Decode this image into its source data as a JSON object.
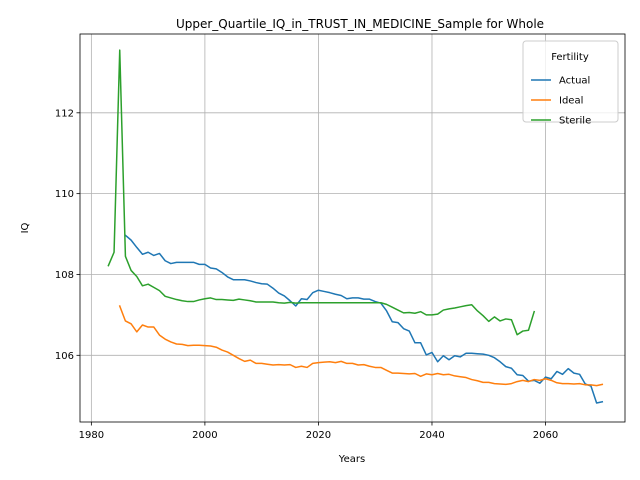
{
  "chart_data": {
    "type": "line",
    "title": "Upper_Quartile_IQ_in_TRUST_IN_MEDICINE_Sample for Whole",
    "xlabel": "Years",
    "ylabel": "IQ",
    "xlim": [
      1978,
      2074
    ],
    "ylim": [
      104.35,
      113.95
    ],
    "xticks": [
      1980,
      2000,
      2020,
      2040,
      2060
    ],
    "yticks": [
      106,
      108,
      110,
      112
    ],
    "grid": true,
    "legend": {
      "title": "Fertility",
      "placement": "top-right"
    },
    "colors": {
      "Actual": "#1f77b4",
      "Ideal": "#ff7f0e",
      "Sterile": "#2ca02c"
    },
    "series": [
      {
        "name": "Actual",
        "x": [
          1986,
          1987,
          1988,
          1989,
          1990,
          1991,
          1992,
          1993,
          1994,
          1995,
          1996,
          1997,
          1998,
          1999,
          2000,
          2001,
          2002,
          2003,
          2004,
          2005,
          2006,
          2007,
          2008,
          2009,
          2010,
          2011,
          2012,
          2013,
          2014,
          2015,
          2016,
          2017,
          2018,
          2019,
          2020,
          2021,
          2022,
          2023,
          2024,
          2025,
          2026,
          2027,
          2028,
          2029,
          2030,
          2031,
          2032,
          2033,
          2034,
          2035,
          2036,
          2037,
          2038,
          2039,
          2040,
          2041,
          2042,
          2043,
          2044,
          2045,
          2046,
          2047,
          2048,
          2049,
          2050,
          2051,
          2052,
          2053,
          2054,
          2055,
          2056,
          2057,
          2058,
          2059,
          2060,
          2061,
          2062,
          2063,
          2064,
          2065,
          2066,
          2067,
          2068,
          2069,
          2070
        ],
        "values": [
          108.97,
          108.85,
          108.67,
          108.5,
          108.55,
          108.47,
          108.52,
          108.34,
          108.27,
          108.3,
          108.3,
          108.3,
          108.3,
          108.25,
          108.25,
          108.16,
          108.14,
          108.05,
          107.94,
          107.87,
          107.87,
          107.87,
          107.84,
          107.8,
          107.77,
          107.76,
          107.66,
          107.54,
          107.47,
          107.35,
          107.22,
          107.4,
          107.38,
          107.55,
          107.61,
          107.58,
          107.55,
          107.51,
          107.48,
          107.4,
          107.42,
          107.42,
          107.39,
          107.39,
          107.33,
          107.29,
          107.1,
          106.83,
          106.81,
          106.66,
          106.6,
          106.31,
          106.31,
          106.01,
          106.07,
          105.84,
          105.99,
          105.89,
          105.99,
          105.96,
          106.05,
          106.05,
          106.04,
          106.03,
          106.0,
          105.94,
          105.84,
          105.72,
          105.68,
          105.52,
          105.5,
          105.36,
          105.38,
          105.31,
          105.46,
          105.42,
          105.6,
          105.53,
          105.67,
          105.56,
          105.53,
          105.29,
          105.24,
          104.82,
          104.85
        ]
      },
      {
        "name": "Ideal",
        "x": [
          1985,
          1986,
          1987,
          1988,
          1989,
          1990,
          1991,
          1992,
          1993,
          1994,
          1995,
          1996,
          1997,
          1998,
          1999,
          2000,
          2001,
          2002,
          2003,
          2004,
          2005,
          2006,
          2007,
          2008,
          2009,
          2010,
          2011,
          2012,
          2013,
          2014,
          2015,
          2016,
          2017,
          2018,
          2019,
          2020,
          2021,
          2022,
          2023,
          2024,
          2025,
          2026,
          2027,
          2028,
          2029,
          2030,
          2031,
          2032,
          2033,
          2034,
          2035,
          2036,
          2037,
          2038,
          2039,
          2040,
          2041,
          2042,
          2043,
          2044,
          2045,
          2046,
          2047,
          2048,
          2049,
          2050,
          2051,
          2052,
          2053,
          2054,
          2055,
          2056,
          2057,
          2058,
          2059,
          2060,
          2061,
          2062,
          2063,
          2064,
          2065,
          2066,
          2067,
          2068,
          2069,
          2070
        ],
        "values": [
          107.22,
          106.85,
          106.78,
          106.58,
          106.75,
          106.7,
          106.7,
          106.5,
          106.4,
          106.33,
          106.28,
          106.27,
          106.24,
          106.25,
          106.25,
          106.24,
          106.23,
          106.2,
          106.13,
          106.08,
          106.0,
          105.92,
          105.85,
          105.88,
          105.8,
          105.8,
          105.78,
          105.76,
          105.77,
          105.76,
          105.77,
          105.7,
          105.73,
          105.7,
          105.8,
          105.82,
          105.83,
          105.84,
          105.82,
          105.85,
          105.8,
          105.8,
          105.76,
          105.77,
          105.73,
          105.7,
          105.7,
          105.63,
          105.56,
          105.56,
          105.55,
          105.54,
          105.55,
          105.48,
          105.54,
          105.52,
          105.55,
          105.52,
          105.53,
          105.49,
          105.47,
          105.45,
          105.4,
          105.37,
          105.33,
          105.33,
          105.3,
          105.29,
          105.28,
          105.3,
          105.35,
          105.38,
          105.35,
          105.4,
          105.38,
          105.42,
          105.38,
          105.32,
          105.3,
          105.3,
          105.29,
          105.3,
          105.27,
          105.27,
          105.25,
          105.28
        ]
      },
      {
        "name": "Sterile",
        "x": [
          1983,
          1984,
          1985,
          1986,
          1987,
          1988,
          1989,
          1990,
          1991,
          1992,
          1993,
          1994,
          1995,
          1996,
          1997,
          1998,
          1999,
          2000,
          2001,
          2002,
          2003,
          2004,
          2005,
          2006,
          2007,
          2008,
          2009,
          2010,
          2011,
          2012,
          2013,
          2014,
          2015,
          2016,
          2017,
          2018,
          2019,
          2020,
          2021,
          2022,
          2023,
          2024,
          2025,
          2026,
          2027,
          2028,
          2029,
          2030,
          2031,
          2032,
          2033,
          2034,
          2035,
          2036,
          2037,
          2038,
          2039,
          2040,
          2041,
          2042,
          2043,
          2044,
          2045,
          2046,
          2047,
          2048,
          2049,
          2050,
          2051,
          2052,
          2053,
          2054,
          2055,
          2056,
          2057,
          2058
        ],
        "values": [
          108.22,
          108.55,
          113.55,
          108.45,
          108.1,
          107.95,
          107.72,
          107.76,
          107.68,
          107.6,
          107.46,
          107.42,
          107.38,
          107.35,
          107.33,
          107.33,
          107.37,
          107.4,
          107.42,
          107.38,
          107.38,
          107.37,
          107.36,
          107.39,
          107.37,
          107.35,
          107.32,
          107.32,
          107.32,
          107.32,
          107.3,
          107.29,
          107.31,
          107.29,
          107.3,
          107.3,
          107.3,
          107.3,
          107.3,
          107.3,
          107.3,
          107.3,
          107.3,
          107.3,
          107.3,
          107.3,
          107.3,
          107.3,
          107.3,
          107.26,
          107.19,
          107.12,
          107.05,
          107.06,
          107.04,
          107.08,
          107.0,
          107.0,
          107.02,
          107.12,
          107.15,
          107.17,
          107.2,
          107.23,
          107.25,
          107.1,
          106.98,
          106.84,
          106.95,
          106.85,
          106.9,
          106.88,
          106.51,
          106.6,
          106.62,
          107.08
        ]
      }
    ]
  }
}
